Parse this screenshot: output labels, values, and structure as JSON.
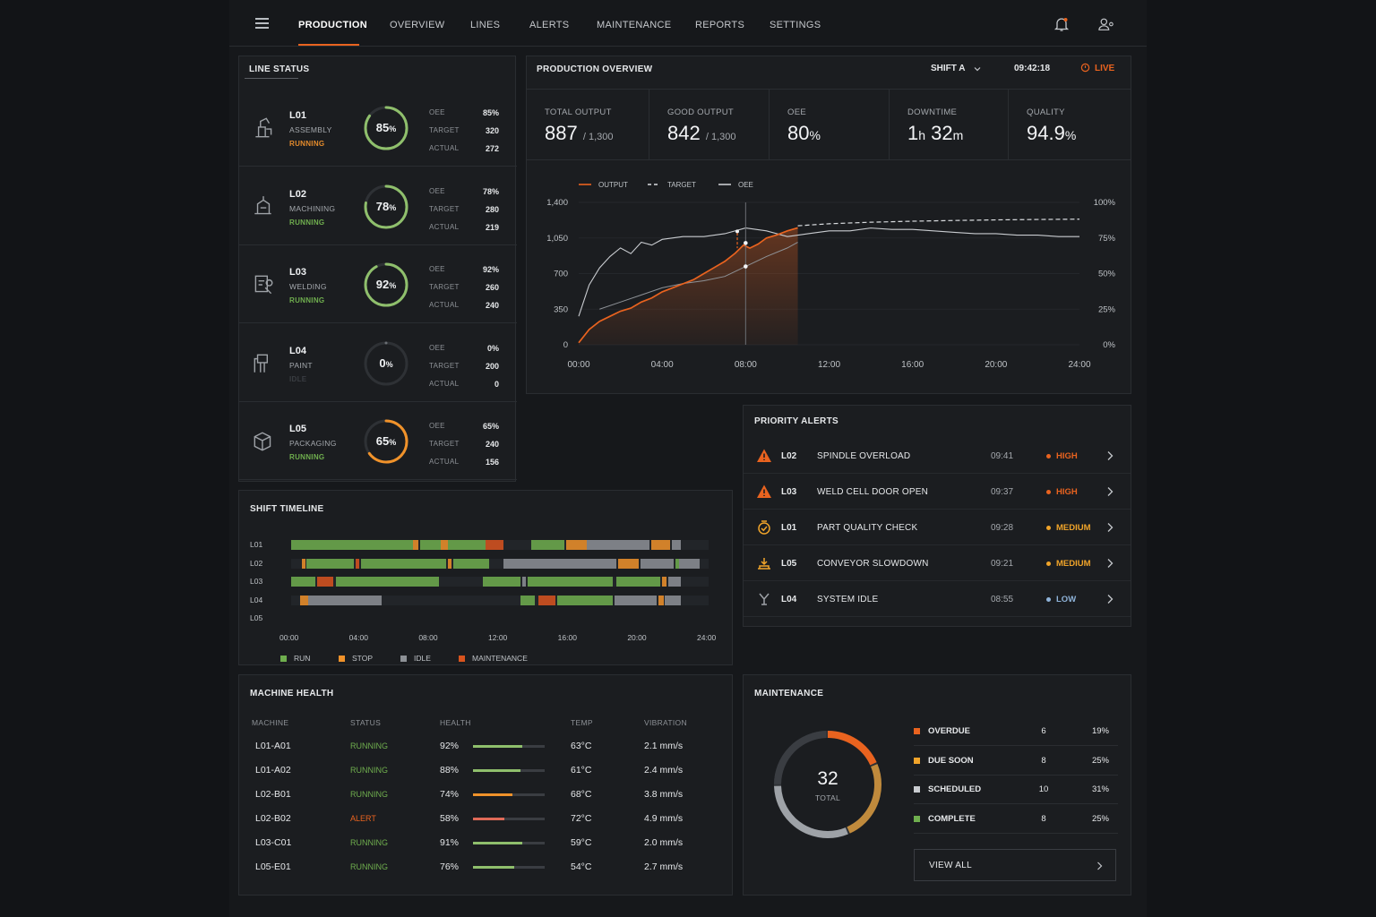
{
  "nav": {
    "tabs": [
      {
        "label": "PRODUCTION",
        "active": true
      },
      {
        "label": "OVERVIEW"
      },
      {
        "label": "LINES"
      },
      {
        "label": "ALERTS"
      },
      {
        "label": "MAINTENANCE"
      },
      {
        "label": "REPORTS"
      },
      {
        "label": "SETTINGS"
      }
    ],
    "icons": [
      "menu-icon",
      "bell-icon",
      "user-settings-icon"
    ]
  },
  "line_status": {
    "title": "LINE STATUS",
    "kv_labels": {
      "oee": "OEE",
      "target": "TARGET",
      "actual": "ACTUAL"
    },
    "lines": [
      {
        "id": "L01",
        "name": "ASSEMBLY",
        "state": "RUNNING",
        "state_color": "#e38b2c",
        "oee_value": "85",
        "oee": 85,
        "target": "320",
        "actual": "272",
        "gauge_color": "#8fbf6c",
        "icon": "assembly-icon"
      },
      {
        "id": "L02",
        "name": "MACHINING",
        "state": "RUNNING",
        "state_color": "#6fae4e",
        "oee_value": "78",
        "oee": 78,
        "target": "280",
        "actual": "219",
        "gauge_color": "#8fbf6c",
        "icon": "machining-icon"
      },
      {
        "id": "L03",
        "name": "WELDING",
        "state": "RUNNING",
        "state_color": "#6fae4e",
        "oee_value": "92",
        "oee": 92,
        "target": "260",
        "actual": "240",
        "gauge_color": "#8fbf6c",
        "icon": "welding-icon"
      },
      {
        "id": "L04",
        "name": "PAINT",
        "state": "IDLE",
        "state_color": "#3a3d42",
        "oee_value": "0",
        "oee": 0,
        "target": "200",
        "actual": "0",
        "gauge_color": "#6b6f74",
        "icon": "paint-icon"
      },
      {
        "id": "L05",
        "name": "PACKAGING",
        "state": "RUNNING",
        "state_color": "#6fae4e",
        "oee_value": "65",
        "oee": 65,
        "target": "240",
        "actual": "156",
        "gauge_color": "#f0922a",
        "icon": "packaging-icon"
      }
    ],
    "pct": "%"
  },
  "overview": {
    "title": "PRODUCTION OVERVIEW",
    "shift": "SHIFT A",
    "time": "09:42:18",
    "live": "LIVE",
    "kpis": [
      {
        "label": "TOTAL OUTPUT",
        "value": "887",
        "sub": "/ 1,300"
      },
      {
        "label": "GOOD OUTPUT",
        "value": "842",
        "sub": "/ 1,300"
      },
      {
        "label": "OEE",
        "value": "80",
        "unit": "%"
      },
      {
        "label": "DOWNTIME",
        "h": "1",
        "hu": "h",
        "m": "32",
        "mu": "m"
      },
      {
        "label": "QUALITY",
        "value": "94.9",
        "unit": "%"
      }
    ]
  },
  "chart_data": {
    "type": "line",
    "legend": [
      "OUTPUT",
      "TARGET",
      "OEE"
    ],
    "x_ticks": [
      "00:00",
      "04:00",
      "08:00",
      "12:00",
      "16:00",
      "20:00",
      "24:00"
    ],
    "y_ticks": [
      "1,400",
      "1,050",
      "700",
      "350",
      "0"
    ],
    "y2_ticks": [
      "100%",
      "75%",
      "50%",
      "25%",
      "0%"
    ],
    "ylim": [
      0,
      1400
    ],
    "y2lim": [
      0,
      100
    ],
    "xlim": [
      0,
      24
    ],
    "series": [
      {
        "name": "OUTPUT",
        "color": "#e9631f",
        "x": [
          0,
          0.5,
          1,
          1.5,
          2,
          2.5,
          3,
          3.5,
          4,
          4.5,
          5,
          5.5,
          6,
          6.5,
          7,
          7.5,
          7.9,
          8.2,
          8.6,
          9,
          9.5,
          10,
          10.5
        ],
        "y": [
          20,
          150,
          230,
          280,
          330,
          360,
          420,
          460,
          520,
          560,
          600,
          640,
          700,
          760,
          820,
          900,
          980,
          950,
          990,
          1050,
          1080,
          1120,
          1150
        ]
      },
      {
        "name": "TARGET",
        "color": "#d9dcdf",
        "x": [
          10.5,
          12,
          14,
          16,
          18,
          20,
          22,
          24
        ],
        "y": [
          1170,
          1190,
          1205,
          1215,
          1222,
          1228,
          1232,
          1235
        ]
      },
      {
        "name": "OEE",
        "color": "#c9ccd0",
        "x": [
          0,
          0.5,
          1,
          1.5,
          2,
          2.5,
          3,
          3.5,
          4,
          5,
          6,
          7,
          8,
          9,
          10,
          11,
          12,
          13,
          14,
          15,
          16,
          17,
          18,
          19,
          20,
          21,
          22,
          23,
          24
        ],
        "y": [
          20,
          42,
          54,
          62,
          68,
          64,
          72,
          70,
          74,
          76,
          76,
          78,
          82,
          80,
          76,
          78,
          80,
          80,
          82,
          81,
          81,
          80,
          79,
          78,
          78,
          77,
          77,
          76,
          76
        ]
      },
      {
        "name": "OEE_pre",
        "color": "#c9ccd0",
        "x": [
          1,
          2,
          3,
          4,
          5,
          6,
          7,
          8,
          9,
          10,
          10.5
        ],
        "y": [
          25,
          30,
          35,
          40,
          43,
          45,
          48,
          55,
          62,
          68,
          72
        ]
      }
    ],
    "now_x": 8,
    "marker_x": 7.6
  },
  "alerts": {
    "title": "PRIORITY ALERTS",
    "rows": [
      {
        "line": "L02",
        "msg": "SPINDLE OVERLOAD",
        "time": "09:41",
        "priority": "HIGH",
        "color": "#e9631f",
        "icon": "warning-icon"
      },
      {
        "line": "L03",
        "msg": "WELD CELL DOOR OPEN",
        "time": "09:37",
        "priority": "HIGH",
        "color": "#e9631f",
        "icon": "warning-icon"
      },
      {
        "line": "L01",
        "msg": "PART QUALITY CHECK",
        "time": "09:28",
        "priority": "MEDIUM",
        "color": "#f0a42a",
        "icon": "quality-icon"
      },
      {
        "line": "L05",
        "msg": "CONVEYOR SLOWDOWN",
        "time": "09:21",
        "priority": "MEDIUM",
        "color": "#f0a42a",
        "icon": "conveyor-icon"
      },
      {
        "line": "L04",
        "msg": "SYSTEM IDLE",
        "time": "08:55",
        "priority": "LOW",
        "color": "#8fb3d9",
        "icon": "idle-icon"
      }
    ]
  },
  "timeline": {
    "title": "SHIFT TIMELINE",
    "lines": [
      "L01",
      "L02",
      "L03",
      "L04",
      "L05"
    ],
    "ticks": [
      "00:00",
      "04:00",
      "08:00",
      "12:00",
      "16:00",
      "20:00",
      "24:00"
    ],
    "legend": [
      {
        "label": "RUN",
        "color": "#6fae4e"
      },
      {
        "label": "STOP",
        "color": "#f0922a"
      },
      {
        "label": "IDLE",
        "color": "#8d9196"
      },
      {
        "label": "MAINTENANCE",
        "color": "#d9541e"
      }
    ],
    "segments": [
      [
        [
          "run",
          0,
          1.4
        ],
        [
          "run",
          1.4,
          7
        ],
        [
          "stop",
          7,
          7.3
        ],
        [
          "run",
          7.4,
          8.6
        ],
        [
          "stop",
          8.6,
          9
        ],
        [
          "run",
          9,
          11.2
        ],
        [
          "maint",
          11.2,
          12.2
        ],
        [
          "run",
          13.8,
          15.7
        ],
        [
          "stop",
          15.8,
          17
        ],
        [
          "idle",
          17,
          20.6
        ],
        [
          "stop",
          20.7,
          21.8
        ],
        [
          "idle",
          21.9,
          22.4
        ]
      ],
      [
        [
          "stop",
          0.6,
          0.8
        ],
        [
          "run",
          0.9,
          3.6
        ],
        [
          "maint",
          3.7,
          3.9
        ],
        [
          "run",
          4,
          8.9
        ],
        [
          "stop",
          9,
          9.2
        ],
        [
          "run",
          9.3,
          11.4
        ],
        [
          "idle",
          12.2,
          18.7
        ],
        [
          "stop",
          18.8,
          20
        ],
        [
          "idle",
          20.1,
          22
        ],
        [
          "run",
          22.1,
          22.3
        ],
        [
          "idle",
          22.3,
          23.5
        ]
      ],
      [
        [
          "run",
          0,
          1.4
        ],
        [
          "maint",
          1.5,
          2.4
        ],
        [
          "run",
          2.6,
          8.5
        ],
        [
          "run",
          11,
          13.2
        ],
        [
          "idle",
          13.3,
          13.5
        ],
        [
          "run",
          13.6,
          18.5
        ],
        [
          "run",
          18.7,
          21.2
        ],
        [
          "stop",
          21.3,
          21.6
        ],
        [
          "idle",
          21.7,
          22.4
        ]
      ],
      [
        [
          "stop",
          0.5,
          1
        ],
        [
          "idle",
          1,
          5.2
        ],
        [
          "run",
          13.2,
          14
        ],
        [
          "maint",
          14.2,
          15.2
        ],
        [
          "run",
          15.3,
          18.5
        ],
        [
          "idle",
          18.6,
          21
        ],
        [
          "stop",
          21.1,
          21.4
        ],
        [
          "idle",
          21.5,
          22.4
        ]
      ],
      []
    ]
  },
  "machine_health": {
    "title": "MACHINE HEALTH",
    "headers": [
      "MACHINE",
      "STATUS",
      "HEALTH",
      "TEMP",
      "VIBRATION"
    ],
    "rows": [
      {
        "machine": "L01-A01",
        "status": "RUNNING",
        "health": "92%",
        "health_value": 0.92,
        "temp": "63°C",
        "vib": "2.1 mm/s",
        "status_color": "#6fae4e",
        "bar_color": "#8fbf6c"
      },
      {
        "machine": "L01-A02",
        "status": "RUNNING",
        "health": "88%",
        "health_value": 0.88,
        "temp": "61°C",
        "vib": "2.4 mm/s",
        "status_color": "#6fae4e",
        "bar_color": "#8fbf6c"
      },
      {
        "machine": "L02-B01",
        "status": "RUNNING",
        "health": "74%",
        "health_value": 0.74,
        "temp": "68°C",
        "vib": "3.8 mm/s",
        "status_color": "#6fae4e",
        "bar_color": "#f0922a"
      },
      {
        "machine": "L02-B02",
        "status": "ALERT",
        "health": "58%",
        "health_value": 0.58,
        "temp": "72°C",
        "vib": "4.9 mm/s",
        "status_color": "#e9631f",
        "bar_color": "#e06a58"
      },
      {
        "machine": "L03-C01",
        "status": "RUNNING",
        "health": "91%",
        "health_value": 0.91,
        "temp": "59°C",
        "vib": "2.0 mm/s",
        "status_color": "#6fae4e",
        "bar_color": "#8fbf6c"
      },
      {
        "machine": "L05-E01",
        "status": "RUNNING",
        "health": "76%",
        "health_value": 0.76,
        "temp": "54°C",
        "vib": "2.7 mm/s",
        "status_color": "#6fae4e",
        "bar_color": "#8fbf6c"
      }
    ]
  },
  "maintenance": {
    "title": "MAINTENANCE",
    "total": "32",
    "total_label": "TOTAL",
    "rows": [
      {
        "label": "OVERDUE",
        "count": "6",
        "pct": "19%",
        "color": "#e9631f",
        "value": 6
      },
      {
        "label": "DUE SOON",
        "count": "8",
        "pct": "25%",
        "color": "#f0a42a",
        "value": 8
      },
      {
        "label": "SCHEDULED",
        "count": "10",
        "pct": "31%",
        "color": "#c9ccd0",
        "value": 10
      },
      {
        "label": "COMPLETE",
        "count": "8",
        "pct": "25%",
        "color": "#6fae4e",
        "value": 8
      }
    ],
    "view_all": "VIEW ALL"
  }
}
